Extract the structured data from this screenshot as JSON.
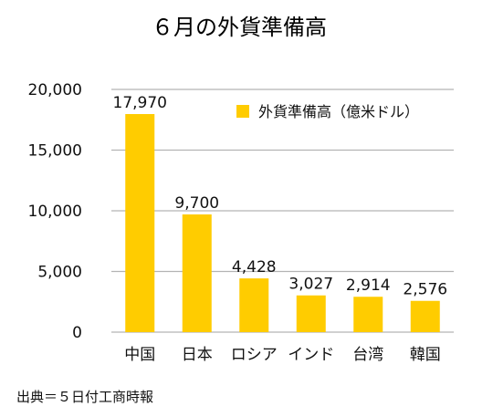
{
  "chart_data": {
    "type": "bar",
    "title": "６月の外貨準備高",
    "categories": [
      "中国",
      "日本",
      "ロシア",
      "インド",
      "台湾",
      "韓国"
    ],
    "series": [
      {
        "name": "外貨準備高（億米ドル）",
        "values": [
          17970,
          9700,
          4428,
          3027,
          2914,
          2576
        ],
        "value_labels": [
          "17,970",
          "9,700",
          "4,428",
          "3,027",
          "2,914",
          "2,576"
        ],
        "color": "#FFCC00"
      }
    ],
    "ylim": [
      0,
      20000
    ],
    "yticks": [
      0,
      5000,
      10000,
      15000,
      20000
    ],
    "ytick_labels": [
      "0",
      "5,000",
      "10,000",
      "15,000",
      "20,000"
    ],
    "grid": true,
    "grid_color": "#B3B3B3",
    "legend_position": "top-right",
    "source": "出典＝５日付工商時報"
  }
}
